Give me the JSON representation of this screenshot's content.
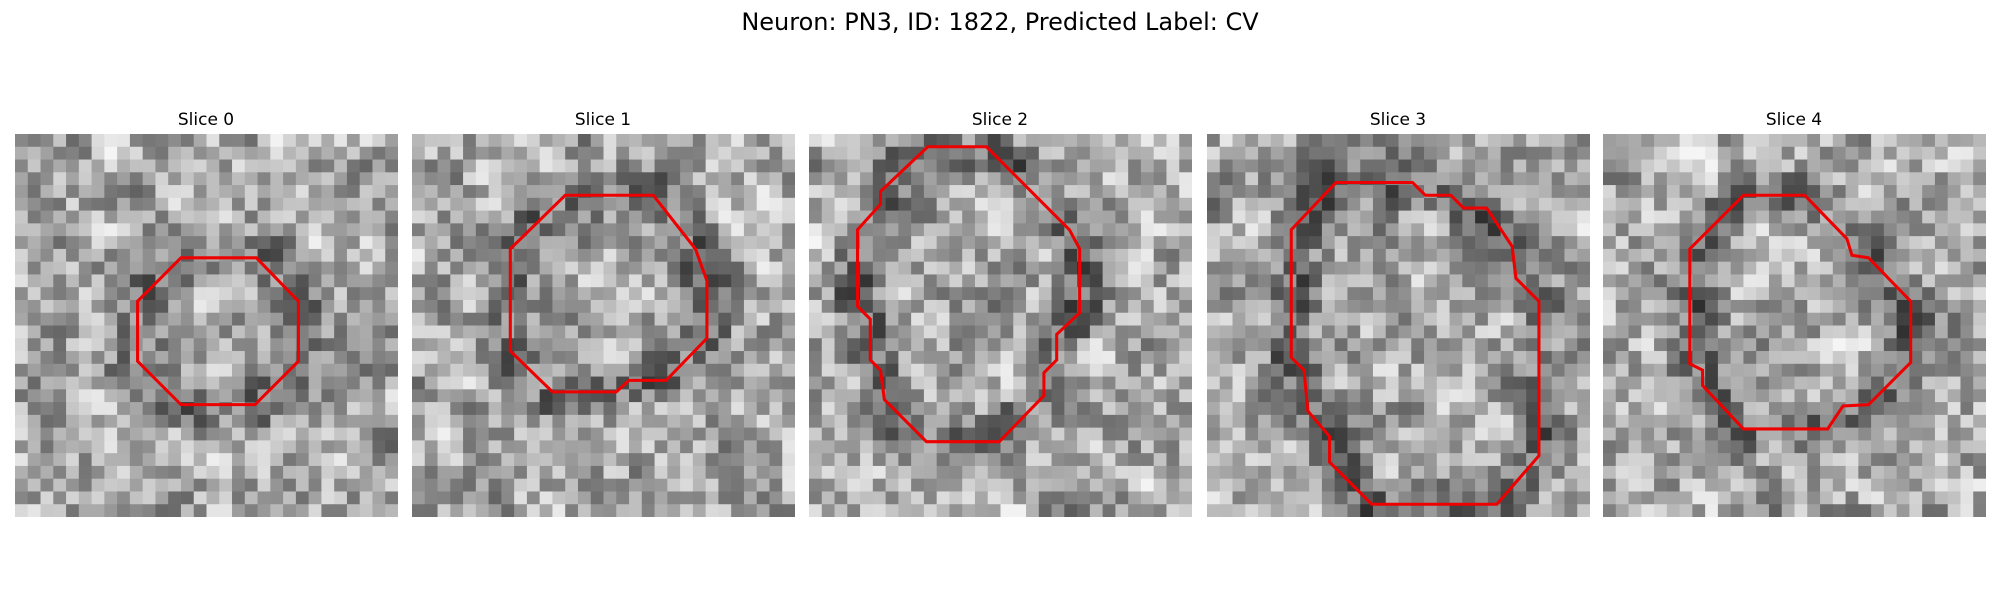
{
  "title": "Neuron: PN3, ID: 1822, Predicted Label: CV",
  "panels": [
    {
      "title": "Slice 0"
    },
    {
      "title": "Slice 1"
    },
    {
      "title": "Slice 2"
    },
    {
      "title": "Slice 3"
    },
    {
      "title": "Slice 4"
    }
  ]
}
